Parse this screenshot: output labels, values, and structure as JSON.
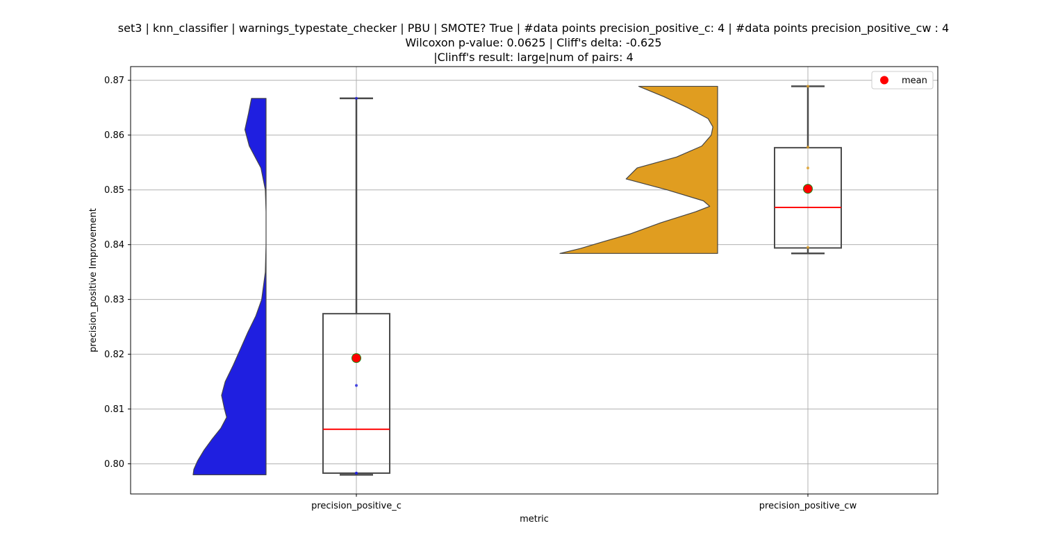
{
  "chart_data": {
    "type": "violin-box",
    "title_lines": [
      "set3 | knn_classifier | warnings_typestate_checker | PBU | SMOTE? True | #data points precision_positive_c: 4 | #data points precision_positive_cw : 4",
      "Wilcoxon p-value: 0.0625 | Cliff's delta: -0.625",
      "|Clinff's result: large|num of pairs: 4"
    ],
    "xlabel": "metric",
    "ylabel": "precision_positive Improvement",
    "categories": [
      "precision_positive_c",
      "precision_positive_cw"
    ],
    "ylim": [
      0.7945,
      0.8725
    ],
    "yticks": [
      0.8,
      0.81,
      0.82,
      0.83,
      0.84,
      0.85,
      0.86,
      0.87
    ],
    "ytick_labels": [
      "0.80",
      "0.81",
      "0.82",
      "0.83",
      "0.84",
      "0.85",
      "0.86",
      "0.87"
    ],
    "grid": true,
    "legend": {
      "position": "top-right",
      "entries": [
        {
          "label": "mean",
          "color": "#ff0000"
        }
      ]
    },
    "series": [
      {
        "name": "precision_positive_c",
        "violin_color": "#1f1fe0",
        "point_color": "#1f1fe0",
        "points": [
          0.7983,
          0.7983,
          0.8143,
          0.8667
        ],
        "box": {
          "min": 0.798,
          "q1": 0.7983,
          "median": 0.8063,
          "q3": 0.8274,
          "max": 0.8667,
          "mean": 0.8193
        },
        "density": [
          [
            0.798,
            1.0
          ],
          [
            0.799,
            0.99
          ],
          [
            0.8005,
            0.94
          ],
          [
            0.8025,
            0.85
          ],
          [
            0.8045,
            0.74
          ],
          [
            0.8065,
            0.62
          ],
          [
            0.8085,
            0.54
          ],
          [
            0.81,
            0.57
          ],
          [
            0.8125,
            0.61
          ],
          [
            0.815,
            0.56
          ],
          [
            0.818,
            0.45
          ],
          [
            0.821,
            0.35
          ],
          [
            0.824,
            0.25
          ],
          [
            0.827,
            0.14
          ],
          [
            0.83,
            0.06
          ],
          [
            0.835,
            0.01
          ],
          [
            0.84,
            0.0
          ],
          [
            0.846,
            0.0
          ],
          [
            0.85,
            0.01
          ],
          [
            0.854,
            0.07
          ],
          [
            0.858,
            0.23
          ],
          [
            0.861,
            0.29
          ],
          [
            0.864,
            0.24
          ],
          [
            0.8667,
            0.2
          ]
        ]
      },
      {
        "name": "precision_positive_cw",
        "violin_color": "#e09d20",
        "point_color": "#e09d20",
        "points": [
          0.8395,
          0.854,
          0.8578,
          0.8689
        ],
        "box": {
          "min": 0.8384,
          "q1": 0.8394,
          "median": 0.8468,
          "q3": 0.8577,
          "max": 0.8689,
          "mean": 0.8502
        },
        "density": [
          [
            0.8384,
            1.0
          ],
          [
            0.8393,
            0.87
          ],
          [
            0.8405,
            0.73
          ],
          [
            0.842,
            0.55
          ],
          [
            0.844,
            0.36
          ],
          [
            0.846,
            0.14
          ],
          [
            0.847,
            0.05
          ],
          [
            0.848,
            0.09
          ],
          [
            0.85,
            0.32
          ],
          [
            0.852,
            0.58
          ],
          [
            0.854,
            0.51
          ],
          [
            0.856,
            0.26
          ],
          [
            0.858,
            0.1
          ],
          [
            0.86,
            0.04
          ],
          [
            0.8615,
            0.03
          ],
          [
            0.863,
            0.06
          ],
          [
            0.865,
            0.19
          ],
          [
            0.867,
            0.34
          ],
          [
            0.8689,
            0.5
          ]
        ]
      }
    ]
  }
}
